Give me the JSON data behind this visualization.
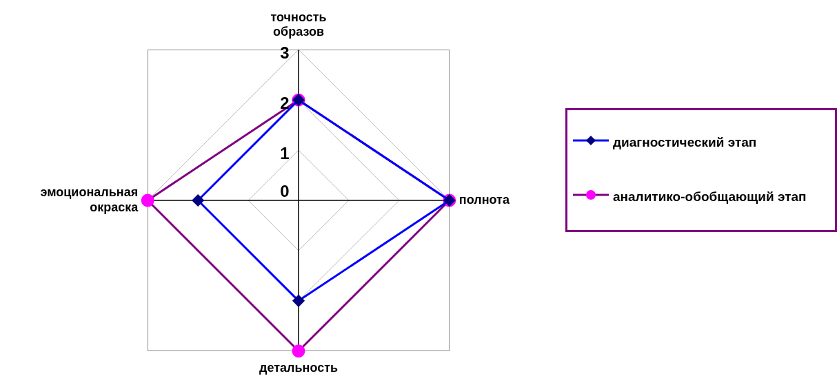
{
  "chart_data": {
    "type": "radar",
    "categories": [
      "точность образов",
      "полнота",
      "детальность",
      "эмоциональная окраска"
    ],
    "series": [
      {
        "name": "диагностический  этап",
        "color": "#0000ff",
        "colors": [
          "#000080",
          "#000080",
          "#000080",
          "#000080"
        ],
        "marker": "diamond",
        "values": [
          2,
          3,
          2,
          2
        ]
      },
      {
        "name": "аналитико-обобщающий этап",
        "color": "#800080",
        "colors": [
          "#ff00ff",
          "#ff00ff",
          "#ff00ff",
          "#ff00ff"
        ],
        "marker": "circle",
        "values": [
          2,
          3,
          3,
          3
        ]
      }
    ],
    "ylim": [
      0,
      3
    ],
    "yticks": [
      0,
      1,
      2,
      3
    ],
    "grid": true,
    "legend": "right"
  }
}
